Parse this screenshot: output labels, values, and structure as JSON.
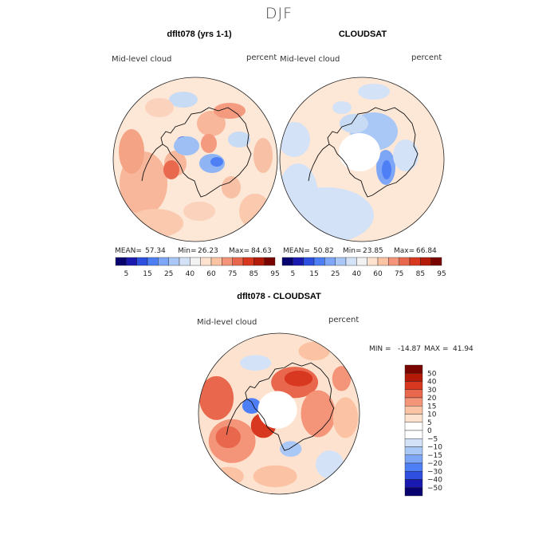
{
  "page_title": "DJF",
  "chart_data": [
    {
      "type": "heatmap",
      "title": "dflt078 (yrs 1-1)",
      "variable_label": "Mid-level cloud",
      "units_label": "percent",
      "projection": "south polar stereographic",
      "stats": {
        "mean_label": "MEAN=",
        "mean": "57.34",
        "min_label": "Min=",
        "min": "26.23",
        "max_label": "Max=",
        "max": "84.63"
      },
      "colorbar": {
        "orientation": "horizontal",
        "levels": [
          5,
          15,
          25,
          40,
          60,
          75,
          85,
          95
        ],
        "tick_labels": [
          "5",
          "15",
          "25",
          "40",
          "60",
          "75",
          "85",
          "95"
        ],
        "colors": [
          "#08036f",
          "#1a1ab0",
          "#2e4fe0",
          "#4f7ff5",
          "#7ea6f7",
          "#aac8f5",
          "#d3e2f7",
          "#f2f2f2",
          "#fde3cf",
          "#fbc2a4",
          "#f4957a",
          "#e8674d",
          "#d8381f",
          "#b31a08",
          "#7a0400"
        ]
      },
      "background_color": "#fde7d6",
      "has_missing_center": false
    },
    {
      "type": "heatmap",
      "title": "CLOUDSAT",
      "variable_label": "Mid-level cloud",
      "units_label": "percent",
      "projection": "south polar stereographic",
      "stats": {
        "mean_label": "MEAN=",
        "mean": "50.82",
        "min_label": "Min=",
        "min": "23.85",
        "max_label": "Max=",
        "max": "66.84"
      },
      "colorbar": {
        "orientation": "horizontal",
        "levels": [
          5,
          15,
          25,
          40,
          60,
          75,
          85,
          95
        ],
        "tick_labels": [
          "5",
          "15",
          "25",
          "40",
          "60",
          "75",
          "85",
          "95"
        ],
        "colors": [
          "#08036f",
          "#1a1ab0",
          "#2e4fe0",
          "#4f7ff5",
          "#7ea6f7",
          "#aac8f5",
          "#d3e2f7",
          "#f2f2f2",
          "#fde3cf",
          "#fbc2a4",
          "#f4957a",
          "#e8674d",
          "#d8381f",
          "#b31a08",
          "#7a0400"
        ]
      },
      "background_color": "#fde7d6",
      "has_missing_center": true
    },
    {
      "type": "heatmap",
      "title": "dflt078 - CLOUDSAT",
      "variable_label": "Mid-level cloud",
      "units_label": "percent",
      "projection": "south polar stereographic",
      "stats": {
        "min_label": "MIN =",
        "min": "-14.87",
        "max_label": "MAX =",
        "max": "41.94"
      },
      "colorbar": {
        "orientation": "vertical",
        "levels": [
          -50,
          -40,
          -30,
          -20,
          -15,
          -10,
          -5,
          0,
          5,
          10,
          15,
          20,
          30,
          40,
          50
        ],
        "tick_labels": [
          "50",
          "40",
          "30",
          "20",
          "15",
          "10",
          "5",
          "0",
          "−5",
          "−10",
          "−15",
          "−20",
          "−30",
          "−40",
          "−50"
        ],
        "colors": [
          "#7a0400",
          "#b31a08",
          "#d8381f",
          "#e8674d",
          "#f4957a",
          "#fbc2a4",
          "#fde3cf",
          "#ffffff",
          "#ffffff",
          "#d3e2f7",
          "#aac8f5",
          "#7ea6f7",
          "#4f7ff5",
          "#2e4fe0",
          "#1a1ab0",
          "#08036f"
        ]
      },
      "background_color": "#fde3cf",
      "has_missing_center": true
    }
  ]
}
